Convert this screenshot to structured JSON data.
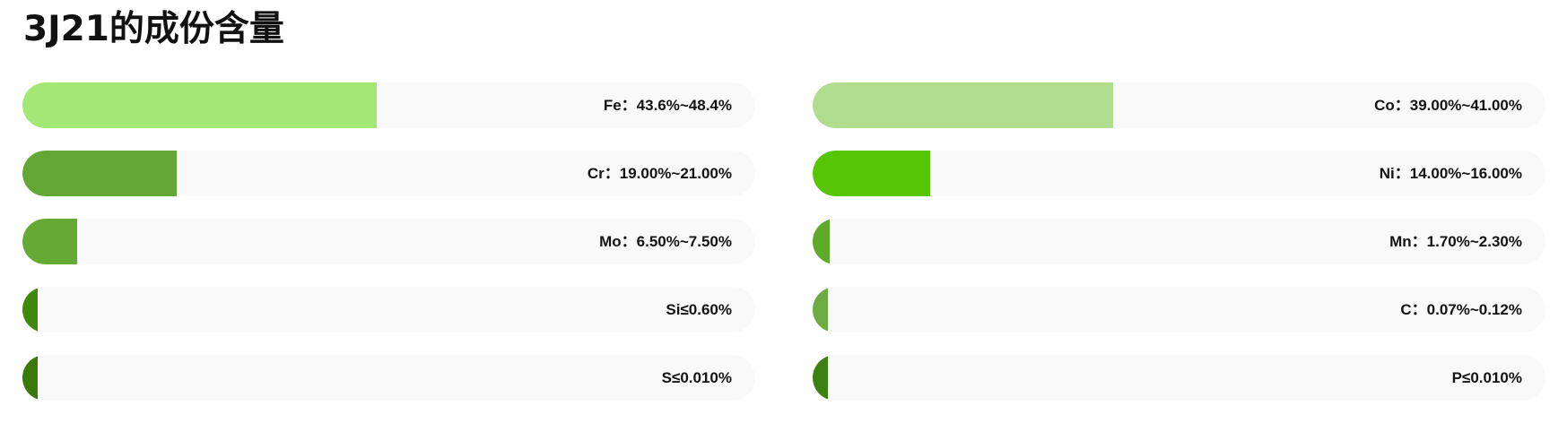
{
  "title": "3J21的成份含量",
  "chart_data": {
    "type": "bar",
    "orientation": "horizontal",
    "title": "3J21的成份含量",
    "xlim": [
      0,
      100
    ],
    "unit": "%",
    "series": [
      {
        "element": "Fe",
        "label": "Fe：43.6%~48.4%",
        "value": 48.4,
        "color": "#a3e874"
      },
      {
        "element": "Cr",
        "label": "Cr：19.00%~21.00%",
        "value": 21.0,
        "color": "#64a734"
      },
      {
        "element": "Mo",
        "label": "Mo：6.50%~7.50%",
        "value": 7.5,
        "color": "#66aa36"
      },
      {
        "element": "Si",
        "label": "Si≤0.60%",
        "value": 0.6,
        "color": "#3f8a0b"
      },
      {
        "element": "S",
        "label": "S≤0.010%",
        "value": 0.01,
        "color": "#397a0b"
      },
      {
        "element": "Co",
        "label": "Co：39.00%~41.00%",
        "value": 41.0,
        "color": "#b1dd8f"
      },
      {
        "element": "Ni",
        "label": "Ni：14.00%~16.00%",
        "value": 16.0,
        "color": "#56c503"
      },
      {
        "element": "Mn",
        "label": "Mn：1.70%~2.30%",
        "value": 2.3,
        "color": "#5faa29"
      },
      {
        "element": "C",
        "label": "C：0.07%~0.12%",
        "value": 0.12,
        "color": "#6eac43"
      },
      {
        "element": "P",
        "label": "P≤0.010%",
        "value": 0.01,
        "color": "#3c8212"
      }
    ]
  }
}
